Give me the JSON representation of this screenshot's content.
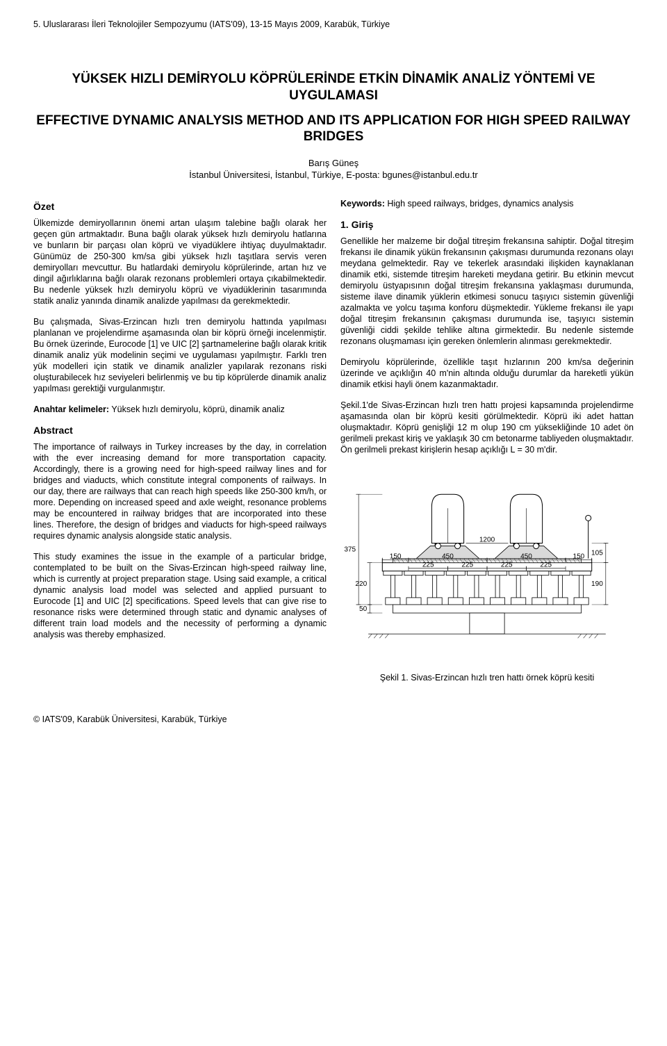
{
  "conference_header": "5. Uluslararası İleri Teknolojiler Sempozyumu (IATS'09), 13-15 Mayıs 2009, Karabük, Türkiye",
  "title_tr": "YÜKSEK HIZLI DEMİRYOLU KÖPRÜLERİNDE ETKİN DİNAMİK ANALİZ YÖNTEMİ VE UYGULAMASI",
  "title_en": "EFFECTIVE DYNAMIC ANALYSIS METHOD AND ITS APPLICATION FOR HIGH SPEED RAILWAY BRIDGES",
  "author_name": "Barış Güneş",
  "author_affil": "İstanbul Üniversitesi, İstanbul, Türkiye, E-posta: bgunes@istanbul.edu.tr",
  "left": {
    "ozet_head": "Özet",
    "ozet_p1": "Ülkemizde demiryollarının önemi artan ulaşım talebine bağlı olarak her geçen gün artmaktadır. Buna bağlı olarak yüksek hızlı demiryolu hatlarına ve bunların bir parçası olan köprü ve viyadüklere ihtiyaç duyulmaktadır. Günümüz de 250-300 km/sa gibi yüksek hızlı taşıtlara servis veren demiryolları mevcuttur. Bu hatlardaki demiryolu köprülerinde, artan hız ve dingil ağırlıklarına bağlı olarak rezonans problemleri ortaya çıkabilmektedir. Bu nedenle yüksek hızlı demiryolu köprü ve viyadüklerinin tasarımında statik analiz yanında dinamik analizde yapılması da gerekmektedir.",
    "ozet_p2": "Bu çalışmada, Sivas-Erzincan hızlı tren demiryolu hattında yapılması planlanan ve projelendirme aşamasında olan bir köprü örneği incelenmiştir. Bu örnek üzerinde, Eurocode [1] ve UIC [2] şartnamelerine bağlı olarak kritik dinamik analiz yük modelinin seçimi ve uygulaması yapılmıştır. Farklı tren yük modelleri için statik ve dinamik analizler yapılarak rezonans riski oluşturabilecek hız seviyeleri belirlenmiş ve bu tip köprülerde dinamik analiz yapılması gerektiği vurgulanmıştır.",
    "anahtar_label": "Anahtar kelimeler:",
    "anahtar_text": " Yüksek hızlı demiryolu, köprü, dinamik analiz",
    "abstract_head": "Abstract",
    "abstract_p1": "The importance of railways in Turkey increases by the day, in correlation with the ever increasing demand for more transportation capacity. Accordingly, there is a growing need for high-speed railway lines and for bridges and viaducts, which constitute integral components of railways. In our day, there are railways that can reach high speeds like 250-300 km/h, or more. Depending on increased speed and axle weight, resonance problems may be encountered in railway bridges that are incorporated into these lines. Therefore, the design of bridges and viaducts for high-speed railways requires dynamic analysis alongside static analysis.",
    "abstract_p2": "This study examines the issue in the example of a particular bridge, contemplated to be built on the Sivas-Erzincan high-speed railway line, which is currently at project preparation stage. Using said example, a critical dynamic analysis load model was selected and applied pursuant to Eurocode [1] and UIC [2] specifications. Speed levels that can give rise to resonance risks were determined through static and dynamic analyses of different train load models and the necessity of performing a dynamic analysis was thereby emphasized."
  },
  "right": {
    "keywords_label": "Keywords:",
    "keywords_text": " High speed railways, bridges, dynamics analysis",
    "giris_head": "1. Giriş",
    "giris_p1": "Genellikle her malzeme bir doğal titreşim frekansına sahiptir. Doğal titreşim frekansı ile dinamik yükün frekansının çakışması durumunda rezonans olayı meydana gelmektedir. Ray ve tekerlek arasındaki ilişkiden kaynaklanan dinamik etki, sistemde titreşim hareketi meydana getirir. Bu etkinin mevcut demiryolu üstyapısının doğal titreşim frekansına yaklaşması durumunda, sisteme ilave dinamik yüklerin etkimesi sonucu taşıyıcı sistemin güvenliği azalmakta ve yolcu taşıma konforu düşmektedir. Yükleme frekansı ile yapı doğal titreşim frekansının çakışması durumunda ise, taşıyıcı sistemin güvenliği ciddi şekilde tehlike altına girmektedir. Bu nedenle sistemde rezonans oluşmaması için gereken önlemlerin alınması gerekmektedir.",
    "giris_p2": "Demiryolu köprülerinde, özellikle taşıt hızlarının 200 km/sa değerinin üzerinde ve açıklığın 40 m'nin altında olduğu durumlar da hareketli yükün dinamik etkisi hayli önem kazanmaktadır.",
    "giris_p3": "Şekil.1'de Sivas-Erzincan hızlı tren hattı projesi kapsamında projelendirme aşamasında olan bir köprü kesiti görülmektedir. Köprü iki adet hattan oluşmaktadır. Köprü genişliği 12 m olup 190 cm yüksekliğinde 10 adet ön gerilmeli prekast kiriş ve yaklaşık 30 cm betonarme tabliyeden oluşmaktadır. Ön gerilmeli prekast kirişlerin hesap açıklığı L = 30 m'dir.",
    "fig_caption": "Şekil 1. Sivas-Erzincan hızlı tren hattı örnek köprü kesiti"
  },
  "figure": {
    "dims": {
      "d150a": "150",
      "d450a": "450",
      "d450b": "450",
      "d150b": "150",
      "d225a": "225",
      "d225b": "225",
      "d1200": "1200",
      "d105": "105",
      "d190": "190",
      "d50": "50",
      "d375": "375",
      "d220": "220"
    },
    "stroke": "#000000",
    "fill_ballast": "#d9d9d9",
    "fill_hatched": "#eeeeee",
    "font_size_dim": 10
  },
  "footer": "© IATS'09, Karabük Üniversitesi, Karabük, Türkiye"
}
